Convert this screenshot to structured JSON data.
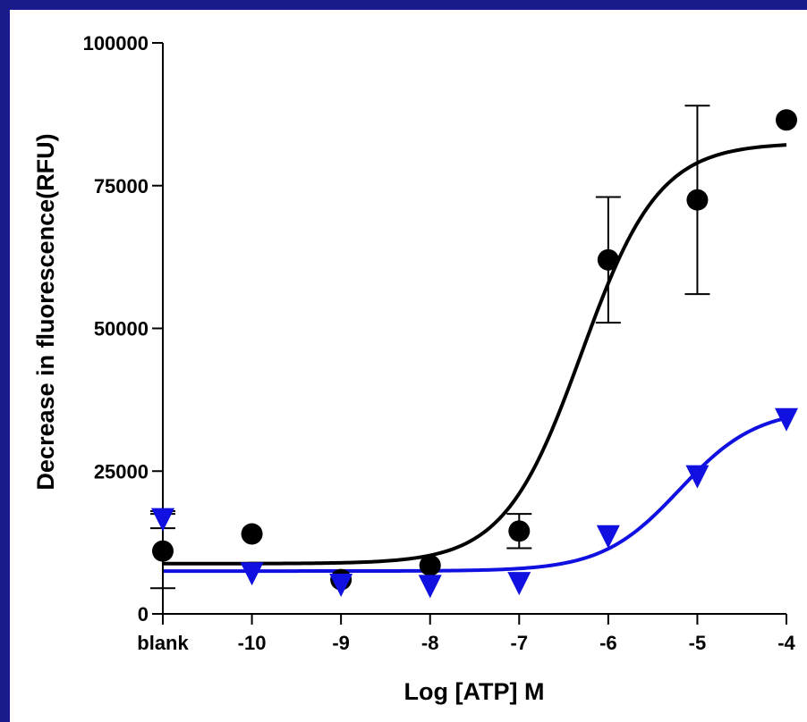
{
  "chart_data": {
    "type": "scatter",
    "title": "",
    "xlabel": "Log [ATP] M",
    "ylabel": "Decrease in fluorescence(RFU)",
    "x_tick_labels": [
      "blank",
      "-10",
      "-9",
      "-8",
      "-7",
      "-6",
      "-5",
      "-4"
    ],
    "x_tick_values": [
      -11,
      -10,
      -9,
      -8,
      -7,
      -6,
      -5,
      -4
    ],
    "y_ticks": [
      0,
      25000,
      50000,
      75000,
      100000
    ],
    "y_tick_labels": [
      "0",
      "25000",
      "50000",
      "75000",
      "100000"
    ],
    "xlim": [
      -11,
      -4
    ],
    "ylim": [
      0,
      100000
    ],
    "grid": false,
    "legend": "none",
    "series": [
      {
        "marker": "circle",
        "color": "#000000",
        "x": [
          -11,
          -10,
          -9,
          -8,
          -7,
          -6,
          -5,
          -4
        ],
        "y": [
          11000,
          14000,
          6000,
          8500,
          14500,
          62000,
          72500,
          86500
        ],
        "error": [
          6500,
          0,
          0,
          0,
          3000,
          11000,
          16500,
          0
        ],
        "fit": {
          "bottom": 8800,
          "top": 82500,
          "logEC50": -6.3,
          "hill": 1.0
        }
      },
      {
        "marker": "triangle-down",
        "color": "#1010e0",
        "x": [
          -11,
          -10,
          -9,
          -8,
          -7,
          -6,
          -5,
          -4
        ],
        "y": [
          16500,
          7000,
          5000,
          4800,
          5300,
          13500,
          24000,
          34000
        ],
        "error": [
          1500,
          0,
          0,
          0,
          0,
          0,
          0,
          0
        ],
        "fit": {
          "bottom": 7500,
          "top": 36000,
          "logEC50": -5.2,
          "hill": 1.0
        }
      }
    ]
  }
}
